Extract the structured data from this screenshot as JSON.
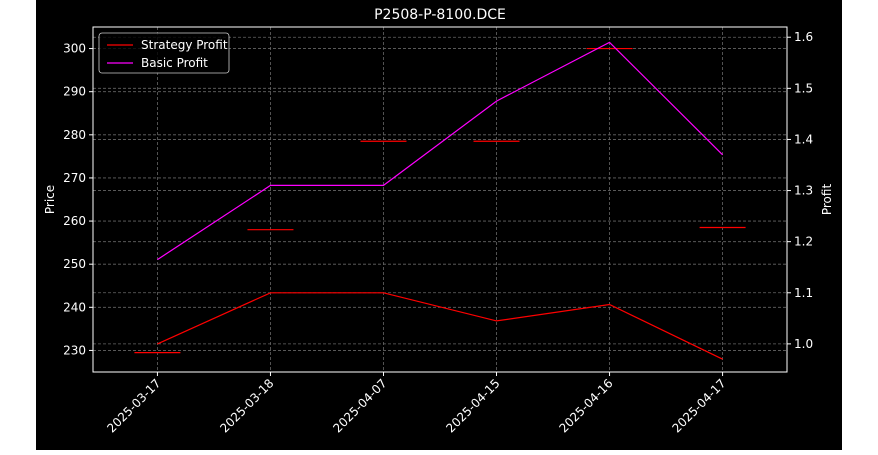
{
  "chart_data": {
    "type": "line",
    "title": "P2508-P-8100.DCE",
    "ylabel_left": "Price",
    "ylabel_right": "Profit",
    "categories": [
      "2025-03-17",
      "2025-03-18",
      "2025-04-07",
      "2025-04-15",
      "2025-04-16",
      "2025-04-17"
    ],
    "price_axis": {
      "ylim": [
        225,
        305
      ],
      "ticks": [
        230,
        240,
        250,
        260,
        270,
        280,
        290,
        300
      ]
    },
    "profit_axis": {
      "ylim": [
        0.945,
        1.62
      ],
      "ticks": [
        "1.0",
        "1.1",
        "1.2",
        "1.3",
        "1.4",
        "1.5",
        "1.6"
      ]
    },
    "price_markers": {
      "color": "#ff0000",
      "values": [
        229.5,
        258,
        278.5,
        278.5,
        300,
        258.5
      ]
    },
    "series": [
      {
        "name": "Strategy Profit",
        "color": "#ff0000",
        "axis": "right",
        "values": [
          1.0,
          1.1,
          1.1,
          1.045,
          1.077,
          0.97
        ]
      },
      {
        "name": "Basic Profit",
        "color": "#ff00ff",
        "axis": "right",
        "values": [
          1.165,
          1.31,
          1.31,
          1.475,
          1.59,
          1.37
        ]
      }
    ],
    "grid": true,
    "legend": "top-left",
    "background": "#000000"
  }
}
